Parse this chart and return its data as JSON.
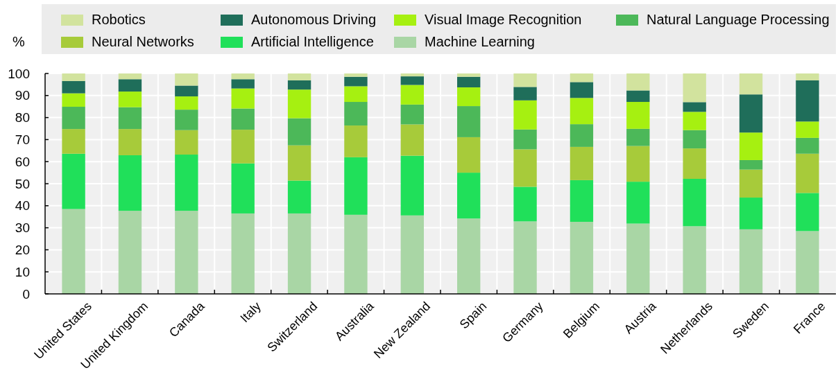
{
  "chart_data": {
    "type": "bar",
    "stacked": true,
    "ylabel": "%",
    "ylim": [
      0,
      100
    ],
    "yticks": [
      0,
      10,
      20,
      30,
      40,
      50,
      60,
      70,
      80,
      90,
      100
    ],
    "grid": true,
    "legend": "top",
    "categories": [
      "United States",
      "United Kingdom",
      "Canada",
      "Italy",
      "Switzerland",
      "Australia",
      "New Zealand",
      "Spain",
      "Germany",
      "Belgium",
      "Austria",
      "Netherlands",
      "Sweden",
      "France"
    ],
    "series": [
      {
        "name": "Machine Learning",
        "color": "#a9d6a5",
        "values": [
          38.5,
          37.7,
          37.7,
          36.5,
          36.5,
          35.9,
          35.6,
          34.2,
          32.9,
          32.7,
          31.9,
          30.7,
          29.3,
          28.5
        ]
      },
      {
        "name": "Artificial Intelligence",
        "color": "#20e05a",
        "values": [
          25.1,
          25.2,
          25.5,
          22.7,
          14.9,
          26.1,
          27.1,
          20.8,
          15.7,
          18.9,
          19.0,
          21.5,
          14.4,
          17.3
        ]
      },
      {
        "name": "Neural Networks",
        "color": "#a7cb3a",
        "values": [
          11.2,
          11.9,
          11.1,
          15.3,
          16.0,
          14.4,
          14.2,
          16.1,
          17.0,
          15.1,
          16.2,
          13.8,
          12.7,
          17.8
        ]
      },
      {
        "name": "Natural Language Processing",
        "color": "#4cb859",
        "values": [
          10.1,
          9.9,
          9.3,
          9.6,
          12.3,
          10.7,
          9.0,
          14.1,
          9.0,
          10.3,
          7.8,
          8.3,
          4.3,
          7.2
        ]
      },
      {
        "name": "Visual Image Recognition",
        "color": "#a6f011",
        "values": [
          6.1,
          7.1,
          6.0,
          9.1,
          13.0,
          7.1,
          8.9,
          8.5,
          13.2,
          11.9,
          12.2,
          8.3,
          12.5,
          7.4
        ]
      },
      {
        "name": "Autonomous Driving",
        "color": "#1f6e5a",
        "values": [
          5.6,
          5.6,
          4.9,
          4.2,
          4.2,
          4.3,
          3.9,
          4.8,
          6.1,
          7.2,
          5.2,
          4.4,
          17.3,
          18.7
        ]
      },
      {
        "name": "Robotics",
        "color": "#d2e39e",
        "values": [
          3.4,
          2.6,
          5.5,
          2.6,
          3.1,
          1.5,
          1.3,
          1.5,
          6.1,
          3.9,
          7.7,
          13.0,
          9.5,
          3.1
        ]
      }
    ]
  }
}
